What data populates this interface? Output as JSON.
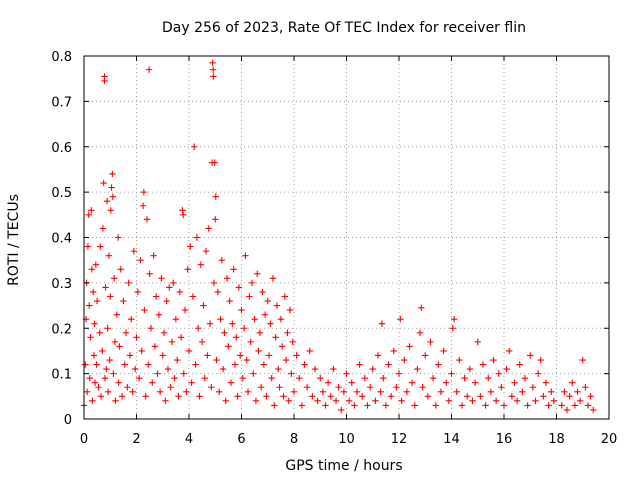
{
  "chart_data": {
    "type": "scatter",
    "title": "Day 256 of 2023, Rate Of TEC Index for receiver flin",
    "xlabel": "GPS time / hours",
    "ylabel": "ROTI / TECUs",
    "xlim": [
      0,
      20
    ],
    "ylim": [
      0,
      0.8
    ],
    "x_ticks": [
      0,
      2,
      4,
      6,
      8,
      10,
      12,
      14,
      16,
      18,
      20
    ],
    "y_ticks": [
      0,
      0.1,
      0.2,
      0.3,
      0.4,
      0.5,
      0.6,
      0.7,
      0.8
    ],
    "x_tick_labels": [
      "0",
      "2",
      "4",
      "6",
      "8",
      "10",
      "12",
      "14",
      "16",
      "18",
      "20"
    ],
    "y_tick_labels": [
      "0",
      "0.1",
      "0.2",
      "0.3",
      "0.4",
      "0.5",
      "0.6",
      "0.7",
      "0.8"
    ],
    "grid": true,
    "marker": "+",
    "color": "#ff0000",
    "series": [
      {
        "name": "ROTI",
        "points": [
          [
            0.0,
            0.03
          ],
          [
            0.05,
            0.12
          ],
          [
            0.08,
            0.22
          ],
          [
            0.1,
            0.3
          ],
          [
            0.12,
            0.06
          ],
          [
            0.15,
            0.38
          ],
          [
            0.18,
            0.45
          ],
          [
            0.2,
            0.25
          ],
          [
            0.22,
            0.09
          ],
          [
            0.25,
            0.18
          ],
          [
            0.28,
            0.46
          ],
          [
            0.3,
            0.33
          ],
          [
            0.32,
            0.04
          ],
          [
            0.35,
            0.28
          ],
          [
            0.38,
            0.14
          ],
          [
            0.4,
            0.21
          ],
          [
            0.42,
            0.08
          ],
          [
            0.45,
            0.34
          ],
          [
            0.48,
            0.12
          ],
          [
            0.5,
            0.26
          ],
          [
            0.55,
            0.07
          ],
          [
            0.6,
            0.19
          ],
          [
            0.62,
            0.38
          ],
          [
            0.65,
            0.05
          ],
          [
            0.7,
            0.15
          ],
          [
            0.72,
            0.42
          ],
          [
            0.75,
            0.52
          ],
          [
            0.78,
            0.745
          ],
          [
            0.78,
            0.755
          ],
          [
            0.8,
            0.09
          ],
          [
            0.82,
            0.29
          ],
          [
            0.85,
            0.11
          ],
          [
            0.88,
            0.48
          ],
          [
            0.9,
            0.2
          ],
          [
            0.92,
            0.06
          ],
          [
            0.95,
            0.36
          ],
          [
            0.98,
            0.13
          ],
          [
            1.0,
            0.27
          ],
          [
            1.02,
            0.46
          ],
          [
            1.05,
            0.51
          ],
          [
            1.08,
            0.54
          ],
          [
            1.1,
            0.49
          ],
          [
            1.12,
            0.1
          ],
          [
            1.15,
            0.31
          ],
          [
            1.18,
            0.17
          ],
          [
            1.2,
            0.04
          ],
          [
            1.25,
            0.23
          ],
          [
            1.3,
            0.4
          ],
          [
            1.32,
            0.08
          ],
          [
            1.35,
            0.16
          ],
          [
            1.4,
            0.33
          ],
          [
            1.45,
            0.05
          ],
          [
            1.5,
            0.26
          ],
          [
            1.55,
            0.12
          ],
          [
            1.6,
            0.19
          ],
          [
            1.65,
            0.07
          ],
          [
            1.7,
            0.3
          ],
          [
            1.75,
            0.14
          ],
          [
            1.8,
            0.22
          ],
          [
            1.85,
            0.06
          ],
          [
            1.9,
            0.37
          ],
          [
            1.95,
            0.11
          ],
          [
            2.0,
            0.18
          ],
          [
            2.05,
            0.28
          ],
          [
            2.1,
            0.09
          ],
          [
            2.15,
            0.35
          ],
          [
            2.2,
            0.15
          ],
          [
            2.25,
            0.47
          ],
          [
            2.28,
            0.5
          ],
          [
            2.3,
            0.24
          ],
          [
            2.35,
            0.05
          ],
          [
            2.4,
            0.44
          ],
          [
            2.45,
            0.12
          ],
          [
            2.48,
            0.77
          ],
          [
            2.5,
            0.32
          ],
          [
            2.55,
            0.2
          ],
          [
            2.6,
            0.08
          ],
          [
            2.65,
            0.36
          ],
          [
            2.7,
            0.16
          ],
          [
            2.75,
            0.27
          ],
          [
            2.8,
            0.1
          ],
          [
            2.85,
            0.23
          ],
          [
            2.9,
            0.06
          ],
          [
            2.95,
            0.31
          ],
          [
            3.0,
            0.14
          ],
          [
            3.05,
            0.19
          ],
          [
            3.1,
            0.04
          ],
          [
            3.15,
            0.26
          ],
          [
            3.2,
            0.11
          ],
          [
            3.25,
            0.29
          ],
          [
            3.3,
            0.07
          ],
          [
            3.35,
            0.17
          ],
          [
            3.4,
            0.3
          ],
          [
            3.45,
            0.09
          ],
          [
            3.5,
            0.22
          ],
          [
            3.55,
            0.13
          ],
          [
            3.6,
            0.05
          ],
          [
            3.65,
            0.28
          ],
          [
            3.7,
            0.18
          ],
          [
            3.75,
            0.46
          ],
          [
            3.78,
            0.45
          ],
          [
            3.8,
            0.1
          ],
          [
            3.85,
            0.24
          ],
          [
            3.9,
            0.06
          ],
          [
            3.95,
            0.33
          ],
          [
            4.0,
            0.15
          ],
          [
            4.05,
            0.38
          ],
          [
            4.1,
            0.08
          ],
          [
            4.15,
            0.27
          ],
          [
            4.2,
            0.6
          ],
          [
            4.25,
            0.12
          ],
          [
            4.3,
            0.4
          ],
          [
            4.35,
            0.2
          ],
          [
            4.4,
            0.05
          ],
          [
            4.45,
            0.34
          ],
          [
            4.5,
            0.17
          ],
          [
            4.55,
            0.25
          ],
          [
            4.6,
            0.09
          ],
          [
            4.65,
            0.37
          ],
          [
            4.7,
            0.14
          ],
          [
            4.75,
            0.42
          ],
          [
            4.8,
            0.21
          ],
          [
            4.85,
            0.07
          ],
          [
            4.88,
            0.565
          ],
          [
            4.9,
            0.785
          ],
          [
            4.92,
            0.77
          ],
          [
            4.93,
            0.755
          ],
          [
            4.95,
            0.3
          ],
          [
            4.98,
            0.565
          ],
          [
            5.0,
            0.44
          ],
          [
            5.02,
            0.49
          ],
          [
            5.05,
            0.13
          ],
          [
            5.1,
            0.28
          ],
          [
            5.15,
            0.06
          ],
          [
            5.2,
            0.22
          ],
          [
            5.25,
            0.35
          ],
          [
            5.3,
            0.11
          ],
          [
            5.35,
            0.19
          ],
          [
            5.4,
            0.04
          ],
          [
            5.45,
            0.31
          ],
          [
            5.5,
            0.16
          ],
          [
            5.55,
            0.26
          ],
          [
            5.6,
            0.08
          ],
          [
            5.65,
            0.21
          ],
          [
            5.7,
            0.33
          ],
          [
            5.75,
            0.12
          ],
          [
            5.8,
            0.18
          ],
          [
            5.85,
            0.05
          ],
          [
            5.9,
            0.29
          ],
          [
            5.95,
            0.14
          ],
          [
            6.0,
            0.24
          ],
          [
            6.05,
            0.09
          ],
          [
            6.1,
            0.2
          ],
          [
            6.15,
            0.36
          ],
          [
            6.2,
            0.13
          ],
          [
            6.25,
            0.06
          ],
          [
            6.3,
            0.27
          ],
          [
            6.35,
            0.17
          ],
          [
            6.4,
            0.3
          ],
          [
            6.45,
            0.1
          ],
          [
            6.5,
            0.22
          ],
          [
            6.55,
            0.04
          ],
          [
            6.6,
            0.32
          ],
          [
            6.65,
            0.15
          ],
          [
            6.7,
            0.19
          ],
          [
            6.75,
            0.07
          ],
          [
            6.8,
            0.28
          ],
          [
            6.85,
            0.12
          ],
          [
            6.9,
            0.23
          ],
          [
            6.95,
            0.05
          ],
          [
            7.0,
            0.26
          ],
          [
            7.05,
            0.14
          ],
          [
            7.1,
            0.21
          ],
          [
            7.15,
            0.09
          ],
          [
            7.2,
            0.31
          ],
          [
            7.25,
            0.03
          ],
          [
            7.3,
            0.18
          ],
          [
            7.35,
            0.25
          ],
          [
            7.4,
            0.11
          ],
          [
            7.45,
            0.07
          ],
          [
            7.5,
            0.22
          ],
          [
            7.55,
            0.16
          ],
          [
            7.6,
            0.05
          ],
          [
            7.65,
            0.27
          ],
          [
            7.7,
            0.13
          ],
          [
            7.75,
            0.19
          ],
          [
            7.8,
            0.04
          ],
          [
            7.85,
            0.24
          ],
          [
            7.9,
            0.1
          ],
          [
            7.95,
            0.17
          ],
          [
            8.0,
            0.06
          ],
          [
            8.1,
            0.14
          ],
          [
            8.2,
            0.09
          ],
          [
            8.3,
            0.03
          ],
          [
            8.4,
            0.12
          ],
          [
            8.5,
            0.07
          ],
          [
            8.6,
            0.15
          ],
          [
            8.7,
            0.05
          ],
          [
            8.8,
            0.11
          ],
          [
            8.9,
            0.04
          ],
          [
            9.0,
            0.09
          ],
          [
            9.1,
            0.06
          ],
          [
            9.2,
            0.03
          ],
          [
            9.3,
            0.08
          ],
          [
            9.4,
            0.05
          ],
          [
            9.5,
            0.11
          ],
          [
            9.6,
            0.04
          ],
          [
            9.7,
            0.07
          ],
          [
            9.8,
            0.02
          ],
          [
            9.9,
            0.06
          ],
          [
            10.0,
            0.1
          ],
          [
            10.1,
            0.04
          ],
          [
            10.2,
            0.08
          ],
          [
            10.3,
            0.03
          ],
          [
            10.4,
            0.06
          ],
          [
            10.5,
            0.12
          ],
          [
            10.6,
            0.05
          ],
          [
            10.7,
            0.09
          ],
          [
            10.8,
            0.03
          ],
          [
            10.9,
            0.07
          ],
          [
            11.0,
            0.11
          ],
          [
            11.1,
            0.04
          ],
          [
            11.2,
            0.14
          ],
          [
            11.3,
            0.06
          ],
          [
            11.35,
            0.21
          ],
          [
            11.4,
            0.09
          ],
          [
            11.5,
            0.03
          ],
          [
            11.6,
            0.12
          ],
          [
            11.7,
            0.05
          ],
          [
            11.8,
            0.15
          ],
          [
            11.9,
            0.07
          ],
          [
            12.0,
            0.1
          ],
          [
            12.05,
            0.22
          ],
          [
            12.1,
            0.04
          ],
          [
            12.2,
            0.13
          ],
          [
            12.3,
            0.06
          ],
          [
            12.4,
            0.16
          ],
          [
            12.5,
            0.08
          ],
          [
            12.6,
            0.03
          ],
          [
            12.7,
            0.11
          ],
          [
            12.8,
            0.19
          ],
          [
            12.85,
            0.245
          ],
          [
            12.9,
            0.07
          ],
          [
            13.0,
            0.14
          ],
          [
            13.1,
            0.05
          ],
          [
            13.2,
            0.17
          ],
          [
            13.3,
            0.09
          ],
          [
            13.4,
            0.03
          ],
          [
            13.5,
            0.12
          ],
          [
            13.6,
            0.06
          ],
          [
            13.7,
            0.15
          ],
          [
            13.8,
            0.08
          ],
          [
            13.9,
            0.04
          ],
          [
            14.0,
            0.1
          ],
          [
            14.05,
            0.2
          ],
          [
            14.1,
            0.22
          ],
          [
            14.2,
            0.06
          ],
          [
            14.3,
            0.13
          ],
          [
            14.4,
            0.03
          ],
          [
            14.5,
            0.09
          ],
          [
            14.6,
            0.05
          ],
          [
            14.7,
            0.11
          ],
          [
            14.8,
            0.04
          ],
          [
            14.9,
            0.08
          ],
          [
            15.0,
            0.17
          ],
          [
            15.1,
            0.05
          ],
          [
            15.2,
            0.12
          ],
          [
            15.3,
            0.03
          ],
          [
            15.4,
            0.09
          ],
          [
            15.5,
            0.06
          ],
          [
            15.6,
            0.13
          ],
          [
            15.7,
            0.04
          ],
          [
            15.8,
            0.1
          ],
          [
            15.9,
            0.07
          ],
          [
            16.0,
            0.03
          ],
          [
            16.1,
            0.11
          ],
          [
            16.2,
            0.15
          ],
          [
            16.3,
            0.05
          ],
          [
            16.4,
            0.08
          ],
          [
            16.5,
            0.04
          ],
          [
            16.6,
            0.12
          ],
          [
            16.7,
            0.06
          ],
          [
            16.8,
            0.09
          ],
          [
            16.9,
            0.03
          ],
          [
            17.0,
            0.14
          ],
          [
            17.1,
            0.07
          ],
          [
            17.2,
            0.04
          ],
          [
            17.3,
            0.1
          ],
          [
            17.4,
            0.13
          ],
          [
            17.5,
            0.05
          ],
          [
            17.6,
            0.08
          ],
          [
            17.7,
            0.03
          ],
          [
            17.8,
            0.06
          ],
          [
            17.9,
            0.04
          ],
          [
            18.2,
            0.03
          ],
          [
            18.3,
            0.06
          ],
          [
            18.4,
            0.02
          ],
          [
            18.5,
            0.05
          ],
          [
            18.6,
            0.08
          ],
          [
            18.7,
            0.03
          ],
          [
            18.8,
            0.06
          ],
          [
            18.9,
            0.04
          ],
          [
            19.0,
            0.13
          ],
          [
            19.1,
            0.07
          ],
          [
            19.2,
            0.03
          ],
          [
            19.3,
            0.05
          ],
          [
            19.4,
            0.02
          ]
        ]
      }
    ]
  }
}
